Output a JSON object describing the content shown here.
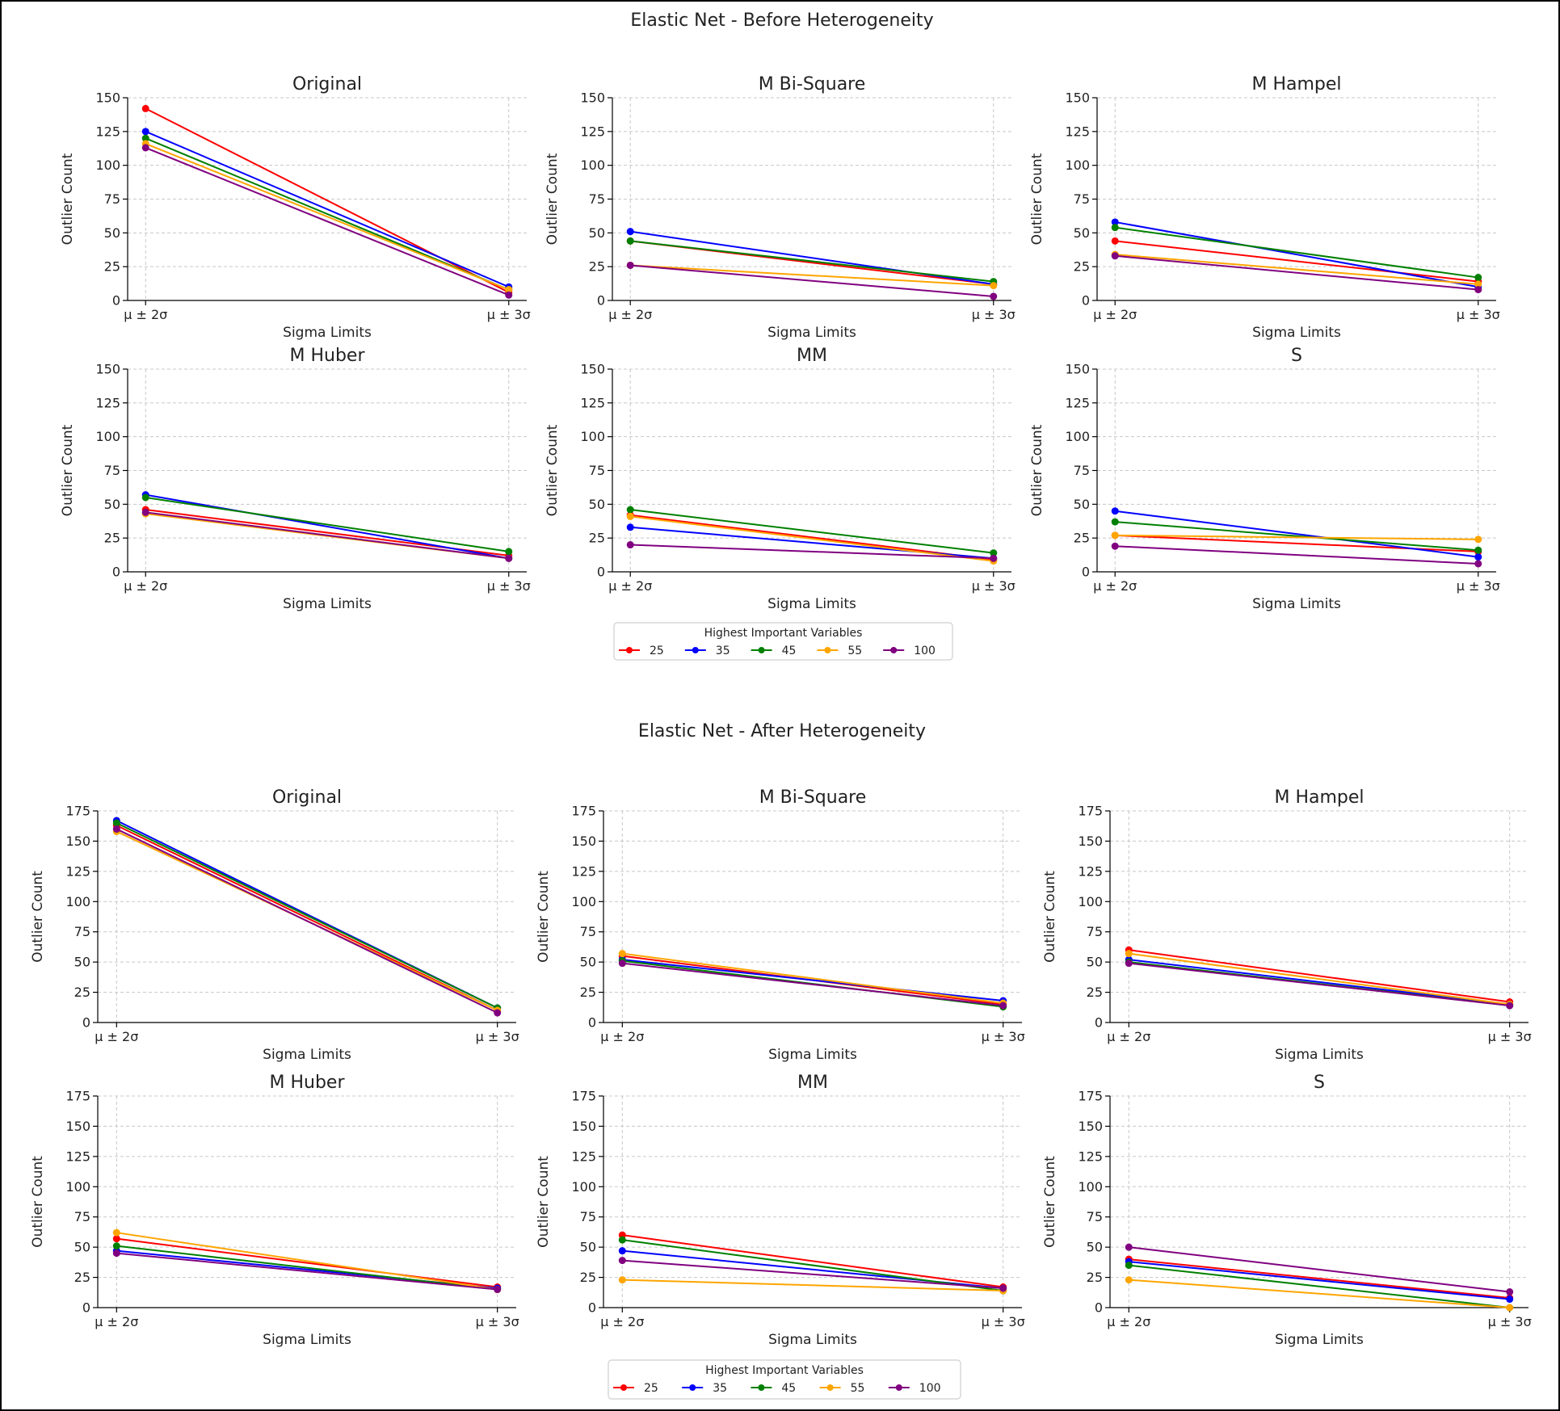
{
  "figures": [
    {
      "title": "Elastic Net - Before Heterogeneity"
    },
    {
      "title": "Elastic Net - After Heterogeneity"
    }
  ],
  "legend": {
    "title": "Highest Important Variables",
    "entries": [
      {
        "name": "25",
        "color": "#ff0000"
      },
      {
        "name": "35",
        "color": "#0000ff"
      },
      {
        "name": "45",
        "color": "#008000"
      },
      {
        "name": "55",
        "color": "#ffa500"
      },
      {
        "name": "100",
        "color": "#800080"
      }
    ]
  },
  "chart_data": [
    {
      "figure": "Elastic Net - Before Heterogeneity",
      "title": "Original",
      "type": "line",
      "categories": [
        "μ ± 2σ",
        "μ ± 3σ"
      ],
      "xlabel": "Sigma Limits",
      "ylabel": "Outlier Count",
      "ylim": [
        0,
        150
      ],
      "yticks": [
        0,
        25,
        50,
        75,
        100,
        125,
        150
      ],
      "series": [
        {
          "name": "25",
          "values": [
            142,
            6
          ]
        },
        {
          "name": "35",
          "values": [
            125,
            10
          ]
        },
        {
          "name": "45",
          "values": [
            120,
            8
          ]
        },
        {
          "name": "55",
          "values": [
            116,
            8
          ]
        },
        {
          "name": "100",
          "values": [
            113,
            4
          ]
        }
      ]
    },
    {
      "figure": "Elastic Net - Before Heterogeneity",
      "title": "M Bi-Square",
      "type": "line",
      "categories": [
        "μ ± 2σ",
        "μ ± 3σ"
      ],
      "xlabel": "Sigma Limits",
      "ylabel": "Outlier Count",
      "ylim": [
        0,
        150
      ],
      "yticks": [
        0,
        25,
        50,
        75,
        100,
        125,
        150
      ],
      "series": [
        {
          "name": "25",
          "values": [
            44,
            12
          ]
        },
        {
          "name": "35",
          "values": [
            51,
            12
          ]
        },
        {
          "name": "45",
          "values": [
            44,
            14
          ]
        },
        {
          "name": "55",
          "values": [
            26,
            11
          ]
        },
        {
          "name": "100",
          "values": [
            26,
            3
          ]
        }
      ]
    },
    {
      "figure": "Elastic Net - Before Heterogeneity",
      "title": "M Hampel",
      "type": "line",
      "categories": [
        "μ ± 2σ",
        "μ ± 3σ"
      ],
      "xlabel": "Sigma Limits",
      "ylabel": "Outlier Count",
      "ylim": [
        0,
        150
      ],
      "yticks": [
        0,
        25,
        50,
        75,
        100,
        125,
        150
      ],
      "series": [
        {
          "name": "25",
          "values": [
            44,
            14
          ]
        },
        {
          "name": "35",
          "values": [
            58,
            10
          ]
        },
        {
          "name": "45",
          "values": [
            54,
            17
          ]
        },
        {
          "name": "55",
          "values": [
            34,
            12
          ]
        },
        {
          "name": "100",
          "values": [
            33,
            8
          ]
        }
      ]
    },
    {
      "figure": "Elastic Net - Before Heterogeneity",
      "title": "M Huber",
      "type": "line",
      "categories": [
        "μ ± 2σ",
        "μ ± 3σ"
      ],
      "xlabel": "Sigma Limits",
      "ylabel": "Outlier Count",
      "ylim": [
        0,
        150
      ],
      "yticks": [
        0,
        25,
        50,
        75,
        100,
        125,
        150
      ],
      "series": [
        {
          "name": "25",
          "values": [
            46,
            12
          ]
        },
        {
          "name": "35",
          "values": [
            57,
            10
          ]
        },
        {
          "name": "45",
          "values": [
            55,
            15
          ]
        },
        {
          "name": "55",
          "values": [
            43,
            10
          ]
        },
        {
          "name": "100",
          "values": [
            44,
            10
          ]
        }
      ]
    },
    {
      "figure": "Elastic Net - Before Heterogeneity",
      "title": "MM",
      "type": "line",
      "categories": [
        "μ ± 2σ",
        "μ ± 3σ"
      ],
      "xlabel": "Sigma Limits",
      "ylabel": "Outlier Count",
      "ylim": [
        0,
        150
      ],
      "yticks": [
        0,
        25,
        50,
        75,
        100,
        125,
        150
      ],
      "series": [
        {
          "name": "25",
          "values": [
            42,
            9
          ]
        },
        {
          "name": "35",
          "values": [
            33,
            10
          ]
        },
        {
          "name": "45",
          "values": [
            46,
            14
          ]
        },
        {
          "name": "55",
          "values": [
            41,
            8
          ]
        },
        {
          "name": "100",
          "values": [
            20,
            10
          ]
        }
      ]
    },
    {
      "figure": "Elastic Net - Before Heterogeneity",
      "title": "S",
      "type": "line",
      "categories": [
        "μ ± 2σ",
        "μ ± 3σ"
      ],
      "xlabel": "Sigma Limits",
      "ylabel": "Outlier Count",
      "ylim": [
        0,
        150
      ],
      "yticks": [
        0,
        25,
        50,
        75,
        100,
        125,
        150
      ],
      "series": [
        {
          "name": "25",
          "values": [
            27,
            15
          ]
        },
        {
          "name": "35",
          "values": [
            45,
            11
          ]
        },
        {
          "name": "45",
          "values": [
            37,
            16
          ]
        },
        {
          "name": "55",
          "values": [
            27,
            24
          ]
        },
        {
          "name": "100",
          "values": [
            19,
            6
          ]
        }
      ]
    },
    {
      "figure": "Elastic Net - After Heterogeneity",
      "title": "Original",
      "type": "line",
      "categories": [
        "μ ± 2σ",
        "μ ± 3σ"
      ],
      "xlabel": "Sigma Limits",
      "ylabel": "Outlier Count",
      "ylim": [
        0,
        175
      ],
      "yticks": [
        0,
        25,
        50,
        75,
        100,
        125,
        150,
        175
      ],
      "series": [
        {
          "name": "25",
          "values": [
            163,
            10
          ]
        },
        {
          "name": "35",
          "values": [
            167,
            12
          ]
        },
        {
          "name": "45",
          "values": [
            165,
            12
          ]
        },
        {
          "name": "55",
          "values": [
            158,
            10
          ]
        },
        {
          "name": "100",
          "values": [
            160,
            8
          ]
        }
      ]
    },
    {
      "figure": "Elastic Net - After Heterogeneity",
      "title": "M Bi-Square",
      "type": "line",
      "categories": [
        "μ ± 2σ",
        "μ ± 3σ"
      ],
      "xlabel": "Sigma Limits",
      "ylabel": "Outlier Count",
      "ylim": [
        0,
        175
      ],
      "yticks": [
        0,
        25,
        50,
        75,
        100,
        125,
        150,
        175
      ],
      "series": [
        {
          "name": "25",
          "values": [
            55,
            15
          ]
        },
        {
          "name": "35",
          "values": [
            52,
            18
          ]
        },
        {
          "name": "45",
          "values": [
            51,
            13
          ]
        },
        {
          "name": "55",
          "values": [
            57,
            16
          ]
        },
        {
          "name": "100",
          "values": [
            49,
            14
          ]
        }
      ]
    },
    {
      "figure": "Elastic Net - After Heterogeneity",
      "title": "M Hampel",
      "type": "line",
      "categories": [
        "μ ± 2σ",
        "μ ± 3σ"
      ],
      "xlabel": "Sigma Limits",
      "ylabel": "Outlier Count",
      "ylim": [
        0,
        175
      ],
      "yticks": [
        0,
        25,
        50,
        75,
        100,
        125,
        150,
        175
      ],
      "series": [
        {
          "name": "25",
          "values": [
            60,
            17
          ]
        },
        {
          "name": "35",
          "values": [
            52,
            15
          ]
        },
        {
          "name": "45",
          "values": [
            50,
            14
          ]
        },
        {
          "name": "55",
          "values": [
            57,
            15
          ]
        },
        {
          "name": "100",
          "values": [
            49,
            14
          ]
        }
      ]
    },
    {
      "figure": "Elastic Net - After Heterogeneity",
      "title": "M Huber",
      "type": "line",
      "categories": [
        "μ ± 2σ",
        "μ ± 3σ"
      ],
      "xlabel": "Sigma Limits",
      "ylabel": "Outlier Count",
      "ylim": [
        0,
        175
      ],
      "yticks": [
        0,
        25,
        50,
        75,
        100,
        125,
        150,
        175
      ],
      "series": [
        {
          "name": "25",
          "values": [
            57,
            17
          ]
        },
        {
          "name": "35",
          "values": [
            47,
            16
          ]
        },
        {
          "name": "45",
          "values": [
            51,
            15
          ]
        },
        {
          "name": "55",
          "values": [
            62,
            15
          ]
        },
        {
          "name": "100",
          "values": [
            45,
            15
          ]
        }
      ]
    },
    {
      "figure": "Elastic Net - After Heterogeneity",
      "title": "MM",
      "type": "line",
      "categories": [
        "μ ± 2σ",
        "μ ± 3σ"
      ],
      "xlabel": "Sigma Limits",
      "ylabel": "Outlier Count",
      "ylim": [
        0,
        175
      ],
      "yticks": [
        0,
        25,
        50,
        75,
        100,
        125,
        150,
        175
      ],
      "series": [
        {
          "name": "25",
          "values": [
            60,
            17
          ]
        },
        {
          "name": "35",
          "values": [
            47,
            16
          ]
        },
        {
          "name": "45",
          "values": [
            56,
            14
          ]
        },
        {
          "name": "55",
          "values": [
            23,
            14
          ]
        },
        {
          "name": "100",
          "values": [
            39,
            16
          ]
        }
      ]
    },
    {
      "figure": "Elastic Net - After Heterogeneity",
      "title": "S",
      "type": "line",
      "categories": [
        "μ ± 2σ",
        "μ ± 3σ"
      ],
      "xlabel": "Sigma Limits",
      "ylabel": "Outlier Count",
      "ylim": [
        0,
        175
      ],
      "yticks": [
        0,
        25,
        50,
        75,
        100,
        125,
        150,
        175
      ],
      "series": [
        {
          "name": "25",
          "values": [
            40,
            8
          ]
        },
        {
          "name": "35",
          "values": [
            38,
            7
          ]
        },
        {
          "name": "45",
          "values": [
            35,
            0
          ]
        },
        {
          "name": "55",
          "values": [
            23,
            0
          ]
        },
        {
          "name": "100",
          "values": [
            50,
            13
          ]
        }
      ]
    }
  ]
}
